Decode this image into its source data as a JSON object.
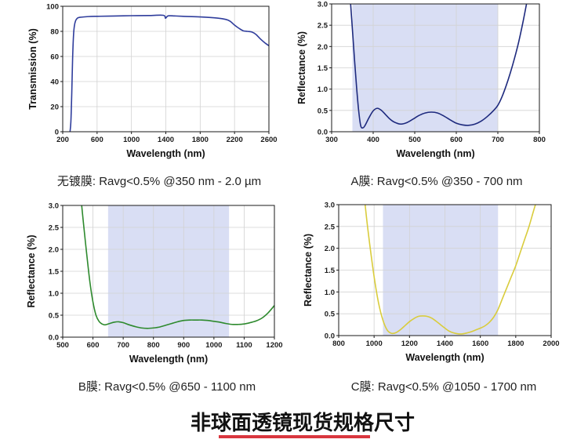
{
  "page": {
    "title": "非球面透镜现货规格尺寸",
    "title_underline_color": "#d9363e",
    "background": "#ffffff"
  },
  "chart_data": [
    {
      "type": "line",
      "xlabel": "Wavelength (nm)",
      "ylabel": "Transmission (%)",
      "xlim": [
        200,
        2600
      ],
      "ylim": [
        0,
        100
      ],
      "x_ticks": [
        "200",
        "600",
        "1000",
        "1400",
        "1800",
        "2200",
        "2600"
      ],
      "y_ticks": [
        "0",
        "20",
        "40",
        "60",
        "80",
        "100"
      ],
      "grid": true,
      "line_color": "#2f3d9c",
      "series": [
        {
          "x": [
            285,
            295,
            305,
            315,
            325,
            335,
            350,
            370,
            400,
            500,
            600,
            800,
            1000,
            1200,
            1370,
            1395,
            1410,
            1430,
            1500,
            1600,
            1800,
            2000,
            2100,
            2150,
            2200,
            2250,
            2300,
            2350,
            2400,
            2450,
            2500,
            2550,
            2600
          ],
          "y": [
            0,
            8,
            30,
            58,
            76,
            84,
            88.5,
            90.5,
            91.2,
            91.8,
            92,
            92.2,
            92.5,
            92.6,
            92.8,
            90.5,
            91.5,
            92.4,
            92.3,
            92,
            91.5,
            90.6,
            89.5,
            88,
            85,
            82.5,
            80.5,
            80,
            79.5,
            77.5,
            74,
            71,
            68.5
          ]
        }
      ],
      "caption": "无镀膜: Ravg<0.5% @350 nm - 2.0 µm"
    },
    {
      "type": "line",
      "xlabel": "Wavelength (nm)",
      "ylabel": "Reflectance (%)",
      "xlim": [
        300,
        800
      ],
      "ylim": [
        0,
        3.0
      ],
      "x_ticks": [
        "300",
        "400",
        "500",
        "600",
        "700",
        "800"
      ],
      "y_ticks": [
        "0.0",
        "0.5",
        "1.0",
        "1.5",
        "2.0",
        "2.5",
        "3.0"
      ],
      "grid": true,
      "highlight_range": [
        350,
        700
      ],
      "highlight_color": "#d9def4",
      "line_color": "#1e2a7e",
      "series": [
        {
          "x": [
            345,
            350,
            355,
            360,
            365,
            370,
            375,
            380,
            390,
            400,
            410,
            420,
            430,
            440,
            450,
            465,
            480,
            495,
            510,
            525,
            540,
            555,
            570,
            585,
            600,
            615,
            630,
            645,
            660,
            675,
            690,
            700,
            710,
            720,
            730,
            740,
            750,
            760,
            770
          ],
          "y": [
            3.1,
            2.4,
            1.7,
            1.05,
            0.5,
            0.14,
            0.09,
            0.14,
            0.33,
            0.49,
            0.55,
            0.5,
            0.4,
            0.3,
            0.23,
            0.18,
            0.21,
            0.29,
            0.38,
            0.44,
            0.46,
            0.44,
            0.37,
            0.28,
            0.2,
            0.16,
            0.15,
            0.18,
            0.25,
            0.36,
            0.5,
            0.62,
            0.82,
            1.08,
            1.38,
            1.72,
            2.1,
            2.55,
            3.05
          ]
        }
      ],
      "caption": "A膜: Ravg<0.5% @350 - 700 nm"
    },
    {
      "type": "line",
      "xlabel": "Wavelength (nm)",
      "ylabel": "Reflectance (%)",
      "xlim": [
        500,
        1200
      ],
      "ylim": [
        0,
        3.0
      ],
      "x_ticks": [
        "500",
        "600",
        "700",
        "800",
        "900",
        "1000",
        "1100",
        "1200"
      ],
      "y_ticks": [
        "0.0",
        "0.5",
        "1.0",
        "1.5",
        "2.0",
        "2.5",
        "3.0"
      ],
      "grid": true,
      "highlight_range": [
        650,
        1050
      ],
      "highlight_color": "#d9def4",
      "line_color": "#2e8a2e",
      "series": [
        {
          "x": [
            562,
            570,
            580,
            590,
            600,
            610,
            620,
            630,
            640,
            655,
            670,
            685,
            700,
            720,
            740,
            760,
            780,
            800,
            820,
            840,
            860,
            880,
            900,
            920,
            940,
            960,
            980,
            1000,
            1020,
            1040,
            1060,
            1080,
            1100,
            1120,
            1140,
            1160,
            1180,
            1200
          ],
          "y": [
            3.05,
            2.5,
            1.85,
            1.25,
            0.8,
            0.5,
            0.36,
            0.3,
            0.28,
            0.31,
            0.34,
            0.35,
            0.33,
            0.28,
            0.24,
            0.21,
            0.2,
            0.21,
            0.23,
            0.27,
            0.31,
            0.35,
            0.38,
            0.39,
            0.39,
            0.39,
            0.38,
            0.36,
            0.34,
            0.31,
            0.29,
            0.29,
            0.3,
            0.33,
            0.37,
            0.44,
            0.56,
            0.72
          ]
        }
      ],
      "caption": "B膜: Ravg<0.5% @650 - 1100 nm"
    },
    {
      "type": "line",
      "xlabel": "Wavelength (nm)",
      "ylabel": "Reflectance (%)",
      "xlim": [
        800,
        2000
      ],
      "ylim": [
        0,
        3.0
      ],
      "x_ticks": [
        "800",
        "1000",
        "1200",
        "1400",
        "1600",
        "1800",
        "2000"
      ],
      "y_ticks": [
        "0.0",
        "0.5",
        "1.0",
        "1.5",
        "2.0",
        "2.5",
        "3.0"
      ],
      "grid": true,
      "highlight_range": [
        1050,
        1700
      ],
      "highlight_color": "#d9def4",
      "line_color": "#d9cc3c",
      "series": [
        {
          "x": [
            948,
            960,
            975,
            1000,
            1025,
            1050,
            1075,
            1100,
            1125,
            1150,
            1175,
            1200,
            1225,
            1250,
            1275,
            1300,
            1325,
            1350,
            1375,
            1400,
            1425,
            1450,
            1475,
            1500,
            1525,
            1550,
            1575,
            1600,
            1625,
            1650,
            1675,
            1700,
            1725,
            1750,
            1775,
            1800,
            1825,
            1850,
            1875,
            1900,
            1915
          ],
          "y": [
            3.05,
            2.6,
            2.1,
            1.35,
            0.75,
            0.35,
            0.12,
            0.05,
            0.07,
            0.14,
            0.23,
            0.32,
            0.39,
            0.44,
            0.45,
            0.44,
            0.4,
            0.33,
            0.25,
            0.17,
            0.1,
            0.06,
            0.04,
            0.04,
            0.06,
            0.09,
            0.13,
            0.17,
            0.22,
            0.3,
            0.42,
            0.6,
            0.85,
            1.1,
            1.35,
            1.6,
            1.9,
            2.2,
            2.5,
            2.85,
            3.05
          ]
        }
      ],
      "caption": "C膜: Ravg<0.5% @1050 - 1700 nm"
    }
  ]
}
